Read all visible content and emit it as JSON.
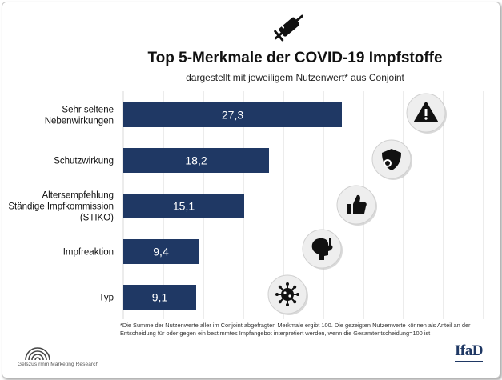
{
  "header": {
    "icon": "syringe-icon",
    "title": "Top 5-Merkmale der COVID-19 Impfstoffe",
    "subtitle": "dargestellt mit jeweiligem Nutzenwert* aus Conjoint"
  },
  "chart_data": {
    "type": "bar",
    "orientation": "horizontal",
    "categories": [
      [
        "Sehr seltene",
        "Nebenwirkungen"
      ],
      [
        "Schutzwirkung"
      ],
      [
        "Altersempfehlung",
        "Ständige Impfkommission",
        "(STIKO)"
      ],
      [
        "Impfreaktion"
      ],
      [
        "Typ"
      ]
    ],
    "values": [
      27.3,
      18.2,
      15.1,
      9.4,
      9.1
    ],
    "data_labels": [
      "27,3",
      "18,2",
      "15,1",
      "9,4",
      "9,1"
    ],
    "icons": [
      "warning-icon",
      "shield-virus-icon",
      "thumbs-up-icon",
      "fever-head-icon",
      "virus-icon"
    ],
    "xlim": [
      0,
      45
    ],
    "gridlines": "vertical",
    "bar_color": "#1f3864",
    "label_color": "#ffffff"
  },
  "footnote": "*Die Summe der Nutzenwerte aller im Conjoint abgefragten Merkmale ergibt 100. Die gezeigten Nutzenwerte können als Anteil an der Entscheidung für oder gegen ein bestimmtes Impfangebot interpretiert werden, wenn die Gesamtentscheidung=100 ist",
  "logos": {
    "left_text": "Gelszus rmm Marketing Research",
    "right_text": "IfaD"
  }
}
